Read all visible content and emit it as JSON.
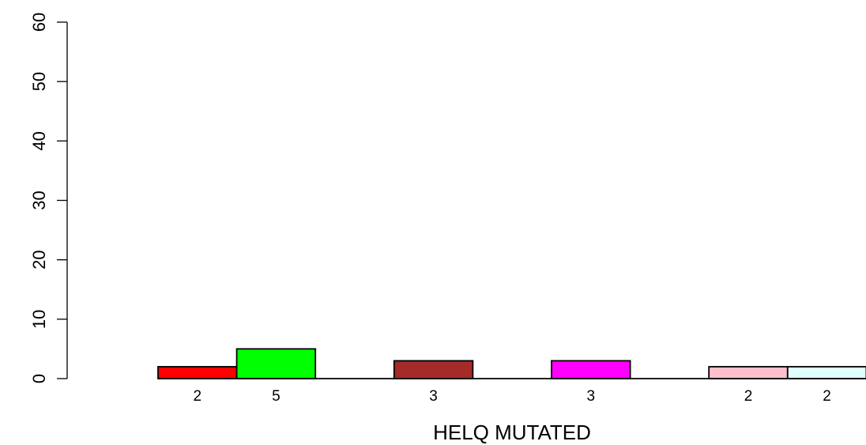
{
  "chart_data": {
    "type": "bar",
    "title": "",
    "xlabel": "HELQ MUTATED",
    "ylabel": "",
    "ylim": [
      0,
      60
    ],
    "yticks": [
      0,
      10,
      20,
      30,
      40,
      50,
      60
    ],
    "grid": false,
    "legend": "none",
    "bars": [
      {
        "value": 2,
        "label": "2",
        "color": "#ff0000",
        "slot": 1
      },
      {
        "value": 5,
        "label": "5",
        "color": "#00ff00",
        "slot": 2
      },
      {
        "value": 3,
        "label": "3",
        "color": "#a52a2a",
        "slot": 4
      },
      {
        "value": 3,
        "label": "3",
        "color": "#ff00ff",
        "slot": 6
      },
      {
        "value": 2,
        "label": "2",
        "color": "#ffc0cb",
        "slot": 8
      },
      {
        "value": 2,
        "label": "2",
        "color": "#e0ffff",
        "slot": 9
      }
    ]
  }
}
